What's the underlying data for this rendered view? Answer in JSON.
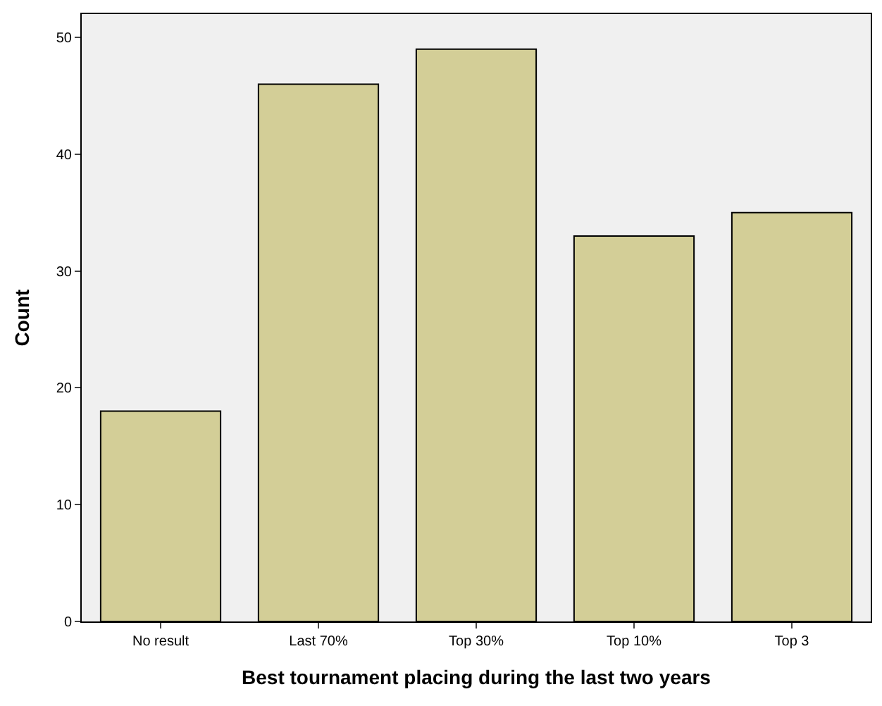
{
  "chart_data": {
    "type": "bar",
    "xlabel": "Best tournament placing during the last two years",
    "ylabel": "Count",
    "categories": [
      "No result",
      "Last 70%",
      "Top 30%",
      "Top 10%",
      "Top 3"
    ],
    "values": [
      18,
      46,
      49,
      33,
      35
    ],
    "color": "#d3ce97",
    "ylim": [
      0,
      52
    ],
    "yticks": [
      0,
      10,
      20,
      30,
      40,
      50
    ],
    "grid": false
  }
}
